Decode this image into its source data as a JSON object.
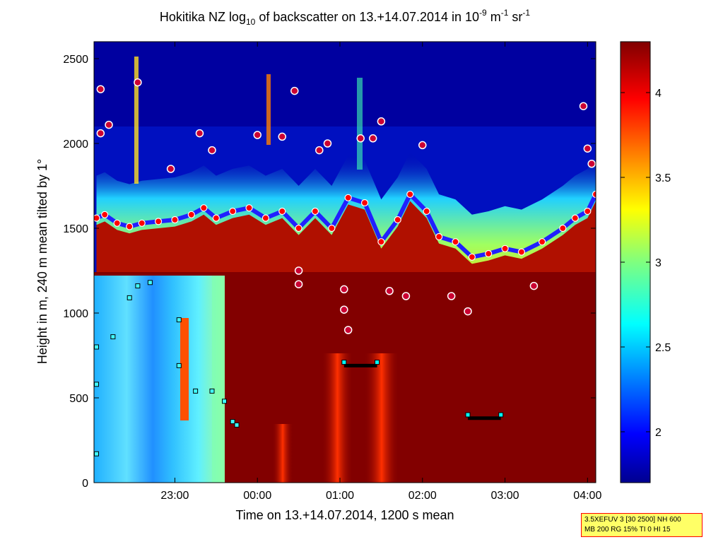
{
  "chart_data": {
    "type": "heatmap",
    "title": {
      "prefix": "Hokitika NZ log",
      "log_base": "10",
      "middle": " of backscatter on 13.+14.07.2014 in 10",
      "unit_exp1": "-9",
      "unit_m": " m",
      "unit_exp2": "-1",
      "unit_sr": " sr",
      "unit_exp3": "-1"
    },
    "xlabel": "Time on 13.+14.07.2014, 1200 s mean",
    "ylabel": "Height in m, 240 m mean tilted by 1°",
    "x_ticks": [
      "23:00",
      "00:00",
      "01:00",
      "02:00",
      "03:00",
      "04:00"
    ],
    "x_tick_hours": [
      23,
      24,
      25,
      26,
      27,
      28
    ],
    "xlim_hours": [
      22.02,
      28.1
    ],
    "y_ticks": [
      "0",
      "500",
      "1000",
      "1500",
      "2000",
      "2500"
    ],
    "y_tick_values": [
      0,
      500,
      1000,
      1500,
      2000,
      2500
    ],
    "ylim": [
      0,
      2600
    ],
    "colorbar": {
      "ticks": [
        "2",
        "2.5",
        "3",
        "3.5",
        "4"
      ],
      "tick_values": [
        2,
        2.5,
        3,
        3.5,
        4
      ],
      "range": [
        1.7,
        4.3
      ],
      "colormap": "jet"
    },
    "cloud_top_height_series": [
      [
        22.05,
        1560
      ],
      [
        22.15,
        1580
      ],
      [
        22.3,
        1530
      ],
      [
        22.45,
        1510
      ],
      [
        22.6,
        1530
      ],
      [
        22.8,
        1540
      ],
      [
        23.0,
        1550
      ],
      [
        23.2,
        1580
      ],
      [
        23.35,
        1620
      ],
      [
        23.5,
        1560
      ],
      [
        23.7,
        1600
      ],
      [
        23.9,
        1620
      ],
      [
        24.1,
        1560
      ],
      [
        24.3,
        1600
      ],
      [
        24.5,
        1500
      ],
      [
        24.7,
        1600
      ],
      [
        24.9,
        1500
      ],
      [
        25.1,
        1680
      ],
      [
        25.3,
        1650
      ],
      [
        25.5,
        1420
      ],
      [
        25.7,
        1550
      ],
      [
        25.85,
        1700
      ],
      [
        26.05,
        1600
      ],
      [
        26.2,
        1450
      ],
      [
        26.4,
        1420
      ],
      [
        26.6,
        1330
      ],
      [
        26.8,
        1350
      ],
      [
        27.0,
        1380
      ],
      [
        27.2,
        1360
      ],
      [
        27.45,
        1420
      ],
      [
        27.7,
        1500
      ],
      [
        27.85,
        1560
      ],
      [
        28.0,
        1600
      ],
      [
        28.1,
        1700
      ]
    ],
    "high_cloud_points": [
      [
        22.1,
        2320
      ],
      [
        22.2,
        2110
      ],
      [
        22.1,
        2060
      ],
      [
        22.55,
        2360
      ],
      [
        22.95,
        1850
      ],
      [
        23.3,
        2060
      ],
      [
        23.45,
        1960
      ],
      [
        24.0,
        2050
      ],
      [
        24.3,
        2040
      ],
      [
        24.45,
        2310
      ],
      [
        24.75,
        1960
      ],
      [
        24.85,
        2000
      ],
      [
        25.25,
        2030
      ],
      [
        25.4,
        2030
      ],
      [
        25.5,
        2130
      ],
      [
        26.0,
        1990
      ],
      [
        27.95,
        2220
      ],
      [
        28.0,
        1970
      ],
      [
        28.05,
        1880
      ]
    ],
    "low_cloud_points": [
      [
        24.5,
        1250
      ],
      [
        24.5,
        1170
      ],
      [
        25.05,
        1140
      ],
      [
        25.05,
        1020
      ],
      [
        25.1,
        900
      ],
      [
        25.6,
        1130
      ],
      [
        25.8,
        1100
      ],
      [
        26.35,
        1100
      ],
      [
        26.55,
        1010
      ],
      [
        27.35,
        1160
      ]
    ],
    "cloud_base_layers": [
      {
        "x_start": 25.05,
        "x_end": 25.45,
        "height": 690
      },
      {
        "x_start": 26.55,
        "x_end": 26.95,
        "height": 380
      }
    ],
    "near_surface_markers": [
      [
        22.05,
        800
      ],
      [
        22.05,
        580
      ],
      [
        22.05,
        170
      ],
      [
        22.25,
        860
      ],
      [
        22.45,
        1090
      ],
      [
        22.55,
        1160
      ],
      [
        22.7,
        1180
      ],
      [
        23.05,
        960
      ],
      [
        23.05,
        690
      ],
      [
        23.25,
        540
      ],
      [
        23.45,
        540
      ],
      [
        23.6,
        480
      ],
      [
        23.7,
        360
      ],
      [
        23.75,
        340
      ]
    ]
  },
  "info_box": {
    "line1": "3.5XEFUV 3 [30 2500] NH 600",
    "line2": "MB 200 RG 15% TI 0 HI 15",
    "background": "#ffff66",
    "border": "#ff0000"
  }
}
